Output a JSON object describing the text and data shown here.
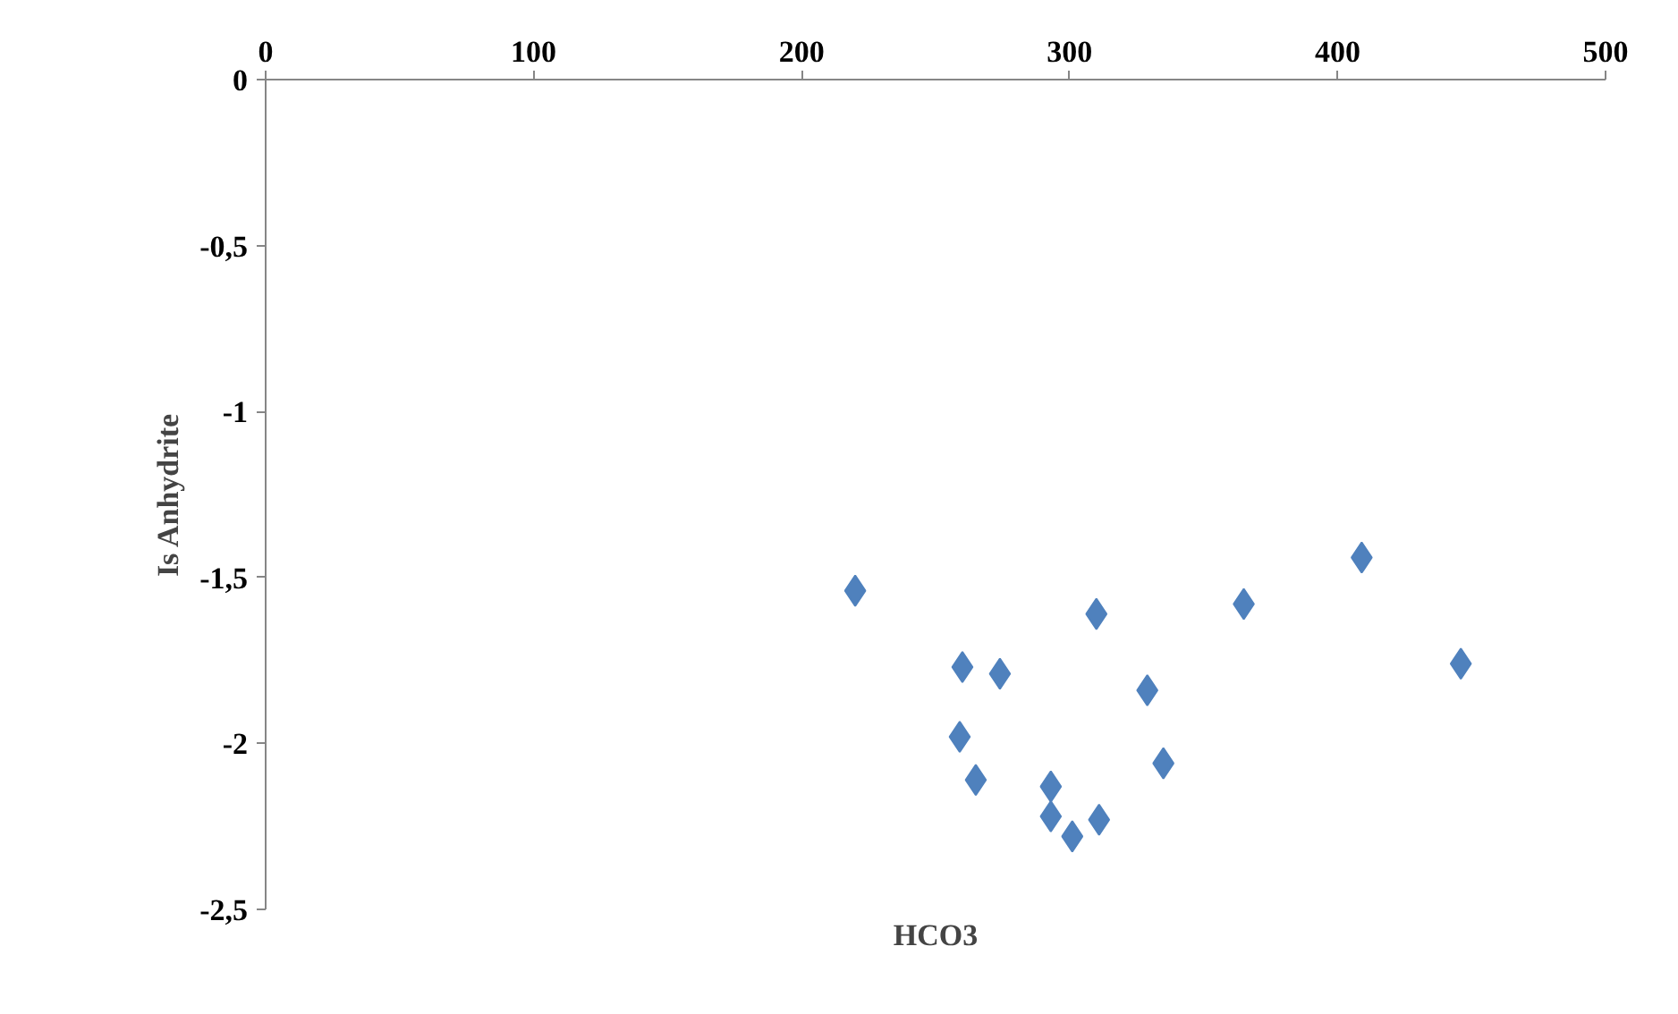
{
  "chart_data": {
    "type": "scatter",
    "xlabel": "HCO3",
    "ylabel": "Is Anhydrite",
    "marker": "diamond",
    "grid": false,
    "xlim": [
      0,
      500
    ],
    "xticks": [
      0,
      100,
      200,
      300,
      400,
      500
    ],
    "ylim": [
      -2.5,
      0
    ],
    "yticks": [
      0,
      {
        "value": -0.5,
        "label": "-0,5"
      },
      -1,
      {
        "value": -1.5,
        "label": "-1,5"
      },
      -2,
      {
        "value": -2.5,
        "label": "-2,5"
      }
    ],
    "series": [
      {
        "color": "#4f81bd",
        "x": [
          220,
          260,
          274,
          310,
          329,
          365,
          409,
          446,
          259,
          265,
          293,
          293,
          301,
          311,
          335
        ],
        "values": [
          -1.54,
          -1.77,
          -1.79,
          -1.61,
          -1.84,
          -1.58,
          -1.44,
          -1.76,
          -1.98,
          -2.11,
          -2.13,
          -2.22,
          -2.28,
          -2.23,
          -2.06
        ]
      }
    ]
  }
}
